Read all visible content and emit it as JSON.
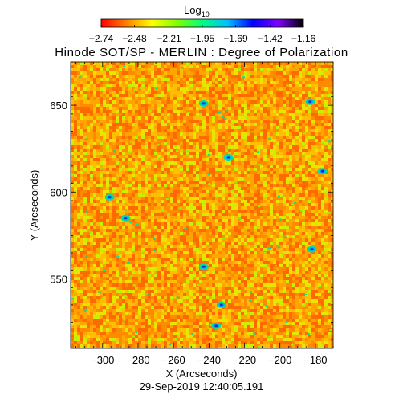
{
  "chart_data": {
    "type": "heatmap",
    "title": "Hinode SOT/SP - MERLIN : Degree of Polarization",
    "timestamp": "29-Sep-2019 12:40:05.191",
    "xlabel": "X (Arcseconds)",
    "ylabel": "Y (Arcseconds)",
    "xlim": [
      -318,
      -170
    ],
    "ylim": [
      510,
      675
    ],
    "xticks": [
      -300,
      -280,
      -260,
      -240,
      -220,
      -200,
      -180
    ],
    "xtick_labels": [
      "−300",
      "−280",
      "−260",
      "−240",
      "−220",
      "−200",
      "−180"
    ],
    "yticks": [
      550,
      600,
      650
    ],
    "ytick_labels": [
      "550",
      "600",
      "650"
    ],
    "colorbar": {
      "label_base": "Log",
      "label_sub": "10",
      "colormap": "rainbow (red to black)",
      "range": [
        -2.74,
        -1.16
      ],
      "ticks": [
        -2.74,
        -2.48,
        -2.21,
        -1.95,
        -1.69,
        -1.42,
        -1.16
      ],
      "tick_labels": [
        "−2.74",
        "−2.48",
        "−2.21",
        "−1.95",
        "−1.69",
        "−1.42",
        "−1.16"
      ],
      "stops": [
        "#ff0000",
        "#ff8000",
        "#ffff00",
        "#80ff00",
        "#00ff80",
        "#00c0ff",
        "#0000ff",
        "#8000ff",
        "#000000"
      ]
    },
    "field": {
      "dominant_colors": [
        "#ff6a00",
        "#ff8a00",
        "#ffa500",
        "#ffbf00",
        "#e6e600",
        "#c8f000"
      ],
      "feature_colors": [
        "#00e0a0",
        "#00b0ff",
        "#1030c0"
      ],
      "features": [
        {
          "x": -243,
          "y": 651
        },
        {
          "x": -183,
          "y": 652
        },
        {
          "x": -296,
          "y": 597
        },
        {
          "x": -233,
          "y": 535
        },
        {
          "x": -236,
          "y": 523
        },
        {
          "x": -182,
          "y": 567
        },
        {
          "x": -229,
          "y": 620
        },
        {
          "x": -176,
          "y": 612
        },
        {
          "x": -287,
          "y": 585
        },
        {
          "x": -243,
          "y": 557
        }
      ]
    }
  }
}
